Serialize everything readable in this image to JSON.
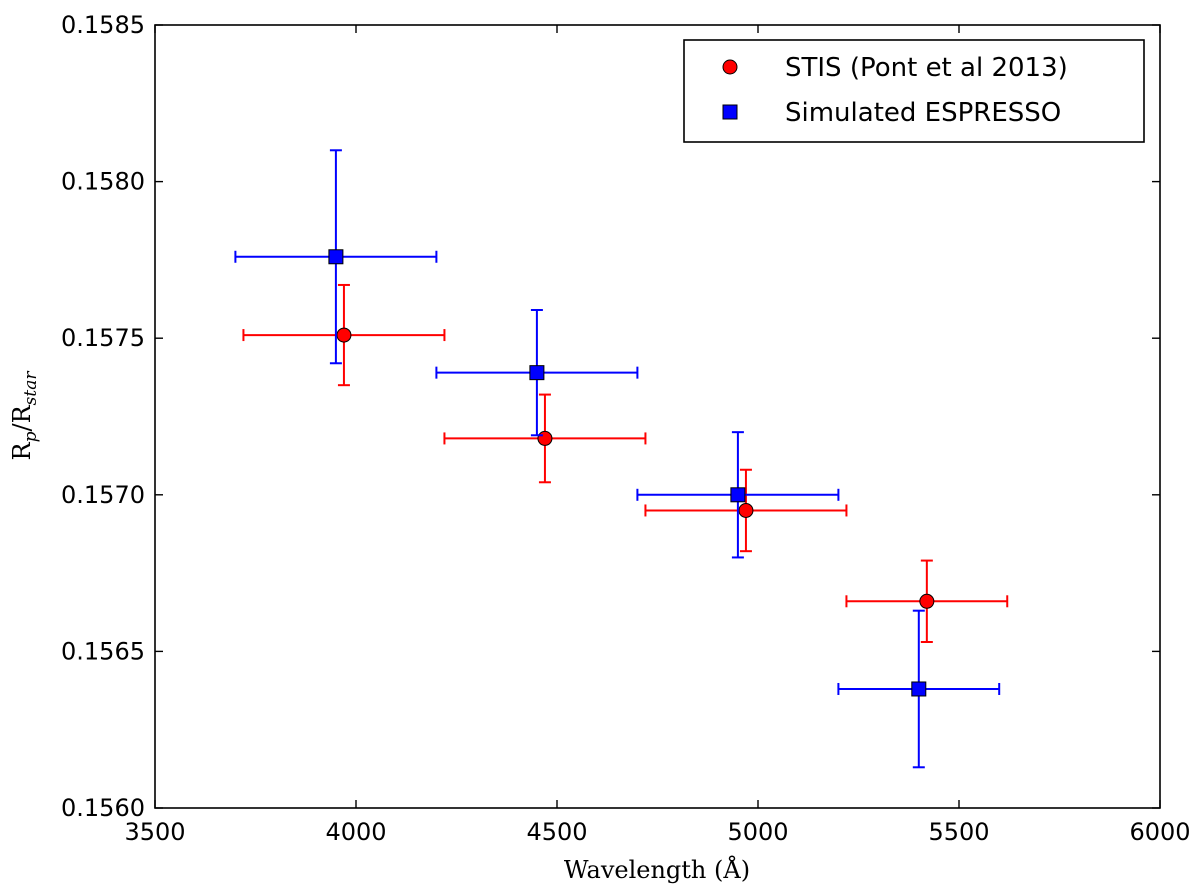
{
  "chart_data": {
    "type": "scatter",
    "xlabel": "Wavelength (Å)",
    "ylabel_main": "R",
    "ylabel_sub1": "p",
    "ylabel_mid": "/R",
    "ylabel_sub2": "star",
    "xlim": [
      3500,
      6000
    ],
    "ylim": [
      0.156,
      0.1585
    ],
    "xticks": [
      3500,
      4000,
      4500,
      5000,
      5500,
      6000
    ],
    "yticks": [
      0.156,
      0.1565,
      0.157,
      0.1575,
      0.158,
      0.1585
    ],
    "xtick_labels": [
      "3500",
      "4000",
      "4500",
      "5000",
      "5500",
      "6000"
    ],
    "ytick_labels": [
      "0.1560",
      "0.1565",
      "0.1570",
      "0.1575",
      "0.1580",
      "0.1585"
    ],
    "grid": false,
    "legend_position": "top-right",
    "series": [
      {
        "name": "STIS (Pont et al 2013)",
        "marker": "circle",
        "color": "#ff0000",
        "points": [
          {
            "x": 3970,
            "y": 0.15751,
            "xerr": 250,
            "yerr": 0.00016
          },
          {
            "x": 4470,
            "y": 0.15718,
            "xerr": 250,
            "yerr": 0.00014
          },
          {
            "x": 4970,
            "y": 0.15695,
            "xerr": 250,
            "yerr": 0.00013
          },
          {
            "x": 5420,
            "y": 0.15666,
            "xerr": 200,
            "yerr": 0.00013
          }
        ]
      },
      {
        "name": "Simulated ESPRESSO",
        "marker": "square",
        "color": "#0000ff",
        "points": [
          {
            "x": 3950,
            "y": 0.15776,
            "xerr": 250,
            "yerr": 0.00034
          },
          {
            "x": 4450,
            "y": 0.15739,
            "xerr": 250,
            "yerr": 0.0002
          },
          {
            "x": 4950,
            "y": 0.157,
            "xerr": 250,
            "yerr": 0.0002
          },
          {
            "x": 5400,
            "y": 0.15638,
            "xerr": 200,
            "yerr": 0.00025
          }
        ]
      }
    ]
  }
}
